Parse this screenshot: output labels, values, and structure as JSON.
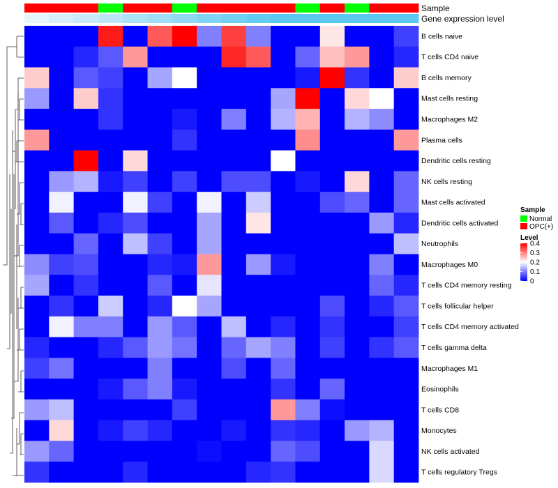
{
  "chart_data": {
    "type": "heatmap",
    "title": "",
    "rows": [
      "B cells naive",
      "T cells CD4 naive",
      "B cells memory",
      "Mast cells resting",
      "Macrophages M2",
      "Plasma cells",
      "Dendritic cells resting",
      "NK cells resting",
      "Mast cells activated",
      "Dendritic cells activated",
      "Neutrophils",
      "Macrophages M0",
      "T cells CD4 memory resting",
      "T cells follicular helper",
      "T cells CD4 memory activated",
      "T cells gamma delta",
      "Macrophages M1",
      "Eosinophils",
      "T cells CD8",
      "Monocytes",
      "NK cells activated",
      "T cells regulatory  Tregs"
    ],
    "sample_groups": [
      "OPC(+)",
      "OPC(+)",
      "OPC(+)",
      "Normal",
      "OPC(+)",
      "OPC(+)",
      "Normal",
      "OPC(+)",
      "OPC(+)",
      "OPC(+)",
      "OPC(+)",
      "Normal",
      "OPC(+)",
      "Normal",
      "OPC(+)",
      "OPC(+)"
    ],
    "values": [
      [
        0,
        0,
        0,
        0.38,
        0,
        0.33,
        0.4,
        0.1,
        0.35,
        0.1,
        0,
        0,
        0.22,
        0,
        0,
        0.05
      ],
      [
        0,
        0,
        0.03,
        0.07,
        0.28,
        0,
        0,
        0,
        0.37,
        0.33,
        0,
        0.08,
        0.25,
        0.28,
        0,
        0.03
      ],
      [
        0.24,
        0,
        0.07,
        0.05,
        0,
        0.13,
        0.2,
        0,
        0,
        0,
        0,
        0.02,
        0.4,
        0.04,
        0,
        0.24
      ],
      [
        0.12,
        0,
        0.24,
        0.04,
        0,
        0,
        0,
        0,
        0,
        0,
        0.13,
        0.4,
        0,
        0.23,
        0.2,
        0
      ],
      [
        0,
        0,
        0,
        0.04,
        0,
        0,
        0.02,
        0,
        0.1,
        0,
        0.14,
        0.26,
        0,
        0.14,
        0.11,
        0
      ],
      [
        0.28,
        0,
        0,
        0,
        0,
        0,
        0.04,
        0,
        0,
        0,
        0,
        0.29,
        0,
        0,
        0,
        0.28
      ],
      [
        0,
        0,
        0.4,
        0,
        0.23,
        0,
        0,
        0,
        0,
        0,
        0.2,
        0,
        0,
        0,
        0,
        0
      ],
      [
        0,
        0.12,
        0.14,
        0.02,
        0.05,
        0,
        0.05,
        0,
        0.06,
        0.06,
        0,
        0.02,
        0,
        0.23,
        0,
        0.08
      ],
      [
        0,
        0.19,
        0,
        0,
        0.19,
        0.05,
        0,
        0.19,
        0,
        0.16,
        0,
        0,
        0.06,
        0.08,
        0,
        0.08
      ],
      [
        0,
        0.07,
        0,
        0.03,
        0.06,
        0,
        0,
        0.13,
        0,
        0.22,
        0,
        0,
        0,
        0,
        0.12,
        0.03
      ],
      [
        0,
        0,
        0.08,
        0,
        0.15,
        0.05,
        0,
        0.13,
        0,
        0,
        0,
        0,
        0,
        0,
        0,
        0.15
      ],
      [
        0.11,
        0.05,
        0.06,
        0,
        0,
        0.03,
        0.02,
        0.28,
        0,
        0.12,
        0.02,
        0,
        0,
        0,
        0.1,
        0
      ],
      [
        0.13,
        0,
        0.04,
        0,
        0,
        0.07,
        0,
        0.18,
        0,
        0,
        0,
        0,
        0,
        0,
        0.08,
        0.03
      ],
      [
        0,
        0.04,
        0,
        0.16,
        0,
        0.03,
        0.2,
        0.13,
        0,
        0,
        0,
        0,
        0.06,
        0,
        0.03,
        0.07
      ],
      [
        0,
        0.19,
        0.1,
        0.1,
        0,
        0.12,
        0.07,
        0,
        0.15,
        0,
        0.03,
        0,
        0.04,
        0,
        0,
        0.05
      ],
      [
        0.03,
        0,
        0,
        0.03,
        0.07,
        0.12,
        0.09,
        0,
        0.08,
        0.13,
        0.1,
        0,
        0.05,
        0,
        0.04,
        0.07
      ],
      [
        0.05,
        0.09,
        0,
        0,
        0,
        0.1,
        0,
        0,
        0.06,
        0,
        0.08,
        0,
        0,
        0,
        0,
        0
      ],
      [
        0,
        0,
        0,
        0.02,
        0.07,
        0.1,
        0.02,
        0,
        0,
        0,
        0.04,
        0,
        0.08,
        0,
        0,
        0
      ],
      [
        0.12,
        0.15,
        0,
        0,
        0,
        0,
        0.05,
        0,
        0,
        0,
        0.28,
        0.1,
        0.01,
        0,
        0,
        0
      ],
      [
        0,
        0.23,
        0,
        0.02,
        0.05,
        0.03,
        0,
        0,
        0.02,
        0,
        0.04,
        0.03,
        0,
        0.12,
        0.14,
        0
      ],
      [
        0.12,
        0.08,
        0,
        0,
        0,
        0,
        0,
        0.01,
        0,
        0,
        0.08,
        0.06,
        0,
        0,
        0.17,
        0
      ],
      [
        0.04,
        0,
        0,
        0,
        0.03,
        0,
        0,
        0,
        0,
        0.03,
        0.04,
        0,
        0,
        0,
        0.17,
        0
      ]
    ],
    "color_scale": {
      "min": 0,
      "mid": 0.2,
      "max": 0.4,
      "low": "#0000ff",
      "mid_color": "#ffffff",
      "high": "#ff0000"
    },
    "annotations": {
      "sample_label": "Sample",
      "expression_label": "Gene expression level"
    },
    "legend": {
      "sample": {
        "title": "Sample",
        "items": [
          {
            "label": "Normal",
            "color": "#00ff00"
          },
          {
            "label": "OPC(+)",
            "color": "#ff0000"
          }
        ]
      },
      "level": {
        "title": "Level",
        "ticks": [
          {
            "value": 0.4,
            "label": "0.4"
          },
          {
            "value": 0.3,
            "label": "0.3"
          },
          {
            "value": 0.2,
            "label": "0.2"
          },
          {
            "value": 0.1,
            "label": "0.1"
          },
          {
            "value": 0,
            "label": "0"
          }
        ]
      }
    }
  }
}
